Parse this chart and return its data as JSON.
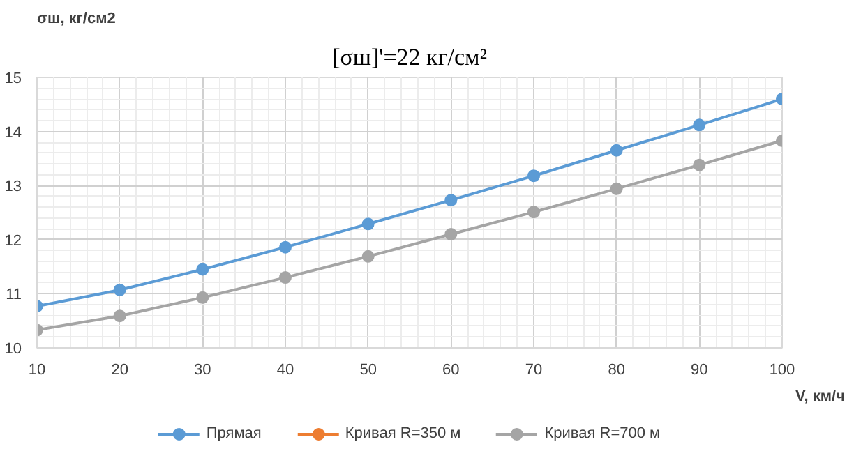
{
  "chart_data": {
    "type": "line",
    "title": "[σш]'=22 кг/см²",
    "ylabel": "σш, кг/см2",
    "xlabel": "V, км/ч",
    "x": [
      10,
      20,
      30,
      40,
      50,
      60,
      70,
      80,
      90,
      100
    ],
    "xlim": [
      10,
      100
    ],
    "xticks": [
      10,
      20,
      30,
      40,
      50,
      60,
      70,
      80,
      90,
      100
    ],
    "ylim": [
      10,
      15
    ],
    "yticks": [
      10,
      11,
      12,
      13,
      14,
      15
    ],
    "grid": true,
    "legend": "bottom",
    "marker": "circle",
    "line_style": "solid",
    "series": [
      {
        "name": "Прямая",
        "color": "#5b9bd5",
        "values": [
          10.77,
          11.07,
          11.45,
          11.86,
          12.29,
          12.73,
          13.18,
          13.65,
          14.12,
          14.6
        ]
      },
      {
        "name": "Кривая R=350 м",
        "color": "#ed7d31",
        "values": [
          null,
          null,
          null,
          null,
          null,
          null,
          null,
          null,
          null,
          null
        ]
      },
      {
        "name": "Кривая R=700 м",
        "color": "#a5a5a5",
        "values": [
          10.33,
          10.59,
          10.93,
          11.3,
          11.69,
          12.1,
          12.51,
          12.94,
          13.38,
          13.83
        ]
      }
    ]
  }
}
